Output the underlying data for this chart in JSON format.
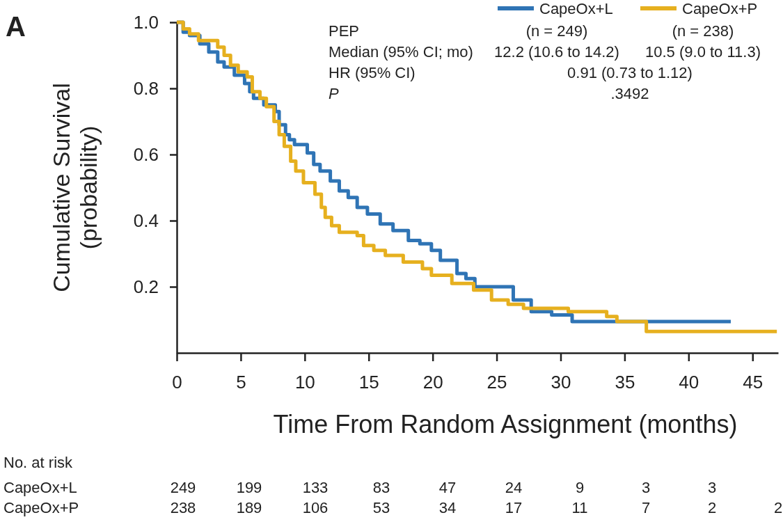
{
  "chart_data": {
    "type": "step",
    "xlabel": "Time From Random Assignment (months)",
    "ylabel": "Cumulative Survival\n(probability)",
    "xlim": [
      0,
      47
    ],
    "ylim": [
      0,
      1
    ],
    "xticks": [
      0,
      5,
      10,
      15,
      20,
      25,
      30,
      35,
      40,
      45
    ],
    "yticks": [
      0.2,
      0.4,
      0.6,
      0.8,
      {
        "value": 1,
        "label": "1.0"
      }
    ],
    "legend": "top right",
    "grid": false,
    "series": [
      {
        "name": "CapeOx+L",
        "color": "#2f74b5",
        "x": [
          0,
          0.5,
          1,
          1.8,
          2.5,
          3.2,
          3.7,
          4.5,
          5.3,
          5.7,
          6.0,
          6.8,
          7.7,
          8.0,
          8.5,
          8.8,
          9.2,
          10.2,
          10.7,
          11.2,
          12.0,
          12.7,
          13.4,
          14.1,
          14.9,
          15.9,
          16.9,
          18.1,
          19.0,
          19.9,
          20.6,
          21.9,
          22.6,
          23.3,
          26.3,
          27.7,
          29.3,
          30.9,
          43.3
        ],
        "values": [
          1.0,
          0.97,
          0.96,
          0.935,
          0.91,
          0.88,
          0.865,
          0.84,
          0.815,
          0.79,
          0.77,
          0.75,
          0.73,
          0.69,
          0.66,
          0.645,
          0.63,
          0.605,
          0.57,
          0.55,
          0.52,
          0.49,
          0.47,
          0.44,
          0.42,
          0.39,
          0.37,
          0.34,
          0.33,
          0.31,
          0.28,
          0.24,
          0.225,
          0.2,
          0.16,
          0.125,
          0.115,
          0.095,
          0.095
        ]
      },
      {
        "name": "CapeOx+P",
        "color": "#e6b01f",
        "x": [
          0,
          0.5,
          1.0,
          1.7,
          3.2,
          3.7,
          4.2,
          4.8,
          5.5,
          5.9,
          6.5,
          7.0,
          7.6,
          8.0,
          8.4,
          8.9,
          9.3,
          9.9,
          10.8,
          11.3,
          11.6,
          12.1,
          12.7,
          14.1,
          14.6,
          15.4,
          16.3,
          17.7,
          19.2,
          19.9,
          21.5,
          23.2,
          24.6,
          25.9,
          27.1,
          30.6,
          33.6,
          34.4,
          36.7,
          46.9
        ],
        "values": [
          1.0,
          0.98,
          0.965,
          0.945,
          0.925,
          0.9,
          0.87,
          0.85,
          0.835,
          0.79,
          0.77,
          0.745,
          0.7,
          0.66,
          0.625,
          0.58,
          0.55,
          0.515,
          0.48,
          0.44,
          0.41,
          0.385,
          0.365,
          0.355,
          0.325,
          0.31,
          0.295,
          0.275,
          0.255,
          0.235,
          0.21,
          0.19,
          0.16,
          0.147,
          0.135,
          0.125,
          0.11,
          0.095,
          0.065,
          0.065
        ]
      }
    ],
    "annotations": [
      "A",
      "PEP",
      "Median (95% CI; mo)",
      "HR (95% CI)",
      "P",
      "(n = 249)",
      "(n = 238)",
      "12.2 (10.6 to 14.2)",
      "10.5 (9.0 to 11.3)",
      "0.91 (0.73 to 1.12)",
      ".3492",
      "No. at risk",
      "CapeOx+L\t249\t199\t133\t83\t47\t24\t9\t3\t3",
      "CapeOx+P\t238\t189\t106\t53\t34\t17\t11\t7\t2\t2"
    ]
  }
}
